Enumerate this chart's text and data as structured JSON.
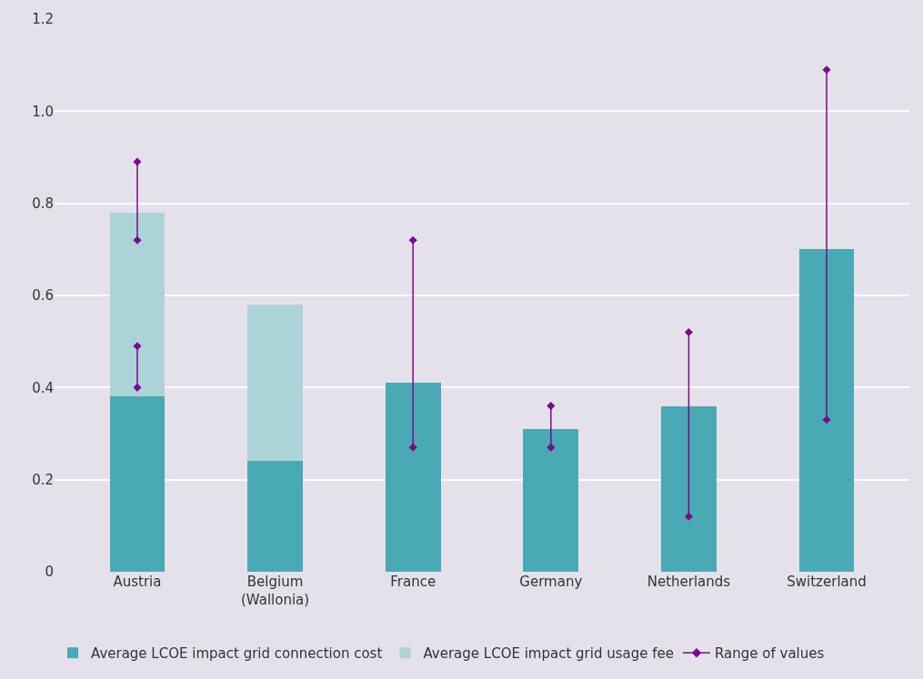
{
  "chart_data": {
    "type": "bar",
    "stacked": true,
    "categories": [
      "Austria",
      "Belgium\n(Wallonia)",
      "France",
      "Germany",
      "Netherlands",
      "Switzerland"
    ],
    "series": [
      {
        "name": "Average LCOE impact grid connection cost",
        "color": "#49a9b5",
        "values": [
          0.38,
          0.24,
          0.41,
          0.31,
          0.36,
          0.7
        ]
      },
      {
        "name": "Average LCOE impact grid usage fee",
        "color": "#acd4d8",
        "values": [
          0.4,
          0.34,
          null,
          null,
          null,
          null
        ]
      },
      {
        "name": "Range of values",
        "type": "scatter",
        "color": "#7b0b8a",
        "marker": "diamond",
        "x": [
          "Austria",
          "Austria",
          "Austria",
          "Austria",
          "France",
          "France",
          "Germany",
          "Germany",
          "Netherlands",
          "Netherlands",
          "Switzerland",
          "Switzerland"
        ],
        "values": [
          0.4,
          0.49,
          0.72,
          0.89,
          0.27,
          0.72,
          0.27,
          0.36,
          0.12,
          0.52,
          0.33,
          1.09
        ],
        "errors": [
          [
            0.4,
            0.49
          ],
          null,
          [
            0.72,
            0.89
          ],
          null,
          [
            0.27,
            0.72
          ],
          null,
          [
            0.27,
            0.36
          ],
          null,
          [
            0.12,
            0.52
          ],
          null,
          [
            0.33,
            1.09
          ],
          null
        ]
      }
    ],
    "ylim": [
      0,
      1.2
    ],
    "yticks": [
      0,
      0.2,
      0.4,
      0.6,
      0.8,
      {
        "value": 1,
        "label": "1.0"
      },
      1.2
    ],
    "grid": "y",
    "legend": "bottom"
  }
}
